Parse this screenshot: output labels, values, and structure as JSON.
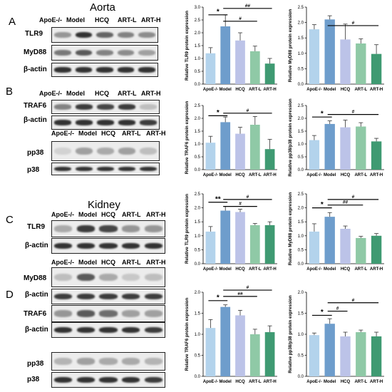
{
  "panels": {
    "A": "A",
    "B": "B",
    "C": "C",
    "D": "D"
  },
  "tissues": {
    "aorta": "Aorta",
    "kidney": "Kidney"
  },
  "groups": [
    "ApoE-/-",
    "Model",
    "HCQ",
    "ART-L",
    "ART-H"
  ],
  "blot_labels": {
    "a_tlr9": "TLR9",
    "a_myd88": "MyD88",
    "a_bactin": "β-actin",
    "b_traf6": "TRAF6",
    "b_bactin": "β-actin",
    "b_pp38": "pp38",
    "b_p38": "p38",
    "c_tlr9": "TLR9",
    "c_bactin1": "β-actin",
    "c_myd88": "MyD88",
    "c_bactin2": "β-actin",
    "d_traf6": "TRAF6",
    "d_bactin": "β-actin",
    "d_pp38": "pp38",
    "d_p38": "p38"
  },
  "colors": {
    "ApoE": "#b3d3ec",
    "Model": "#6e9dcc",
    "HCQ": "#bcc3e8",
    "ARTL": "#8fc9a6",
    "ARTH": "#3f9a72"
  },
  "chart_data": [
    {
      "type": "bar",
      "ylabel": "Relative TLR9 protein expression",
      "ylim": [
        0,
        3
      ],
      "ticks": [
        0.0,
        0.5,
        1.0,
        1.5,
        2.0,
        2.5,
        3.0
      ],
      "categories": [
        "ApoE-/-",
        "Model",
        "HCQ",
        "ART-L",
        "ART-H"
      ],
      "values": [
        1.2,
        2.25,
        1.7,
        1.28,
        0.8
      ],
      "errors": [
        0.22,
        0.45,
        0.3,
        0.2,
        0.2
      ],
      "annotations": [
        {
          "from": 0,
          "to": 1,
          "text": "*",
          "y": 2.7
        },
        {
          "from": 1,
          "to": 3,
          "text": "#",
          "y": 2.45
        },
        {
          "from": 1,
          "to": 4,
          "text": "##",
          "y": 2.95
        }
      ]
    },
    {
      "type": "bar",
      "ylabel": "Relative MyD88 protein expression",
      "ylim": [
        0,
        2.5
      ],
      "ticks": [
        0.0,
        0.5,
        1.0,
        1.5,
        2.0,
        2.5
      ],
      "categories": [
        "ApoE-/-",
        "Model",
        "HCQ",
        "ART-L",
        "ART-H"
      ],
      "values": [
        1.78,
        2.1,
        1.45,
        1.32,
        0.98
      ],
      "errors": [
        0.15,
        0.12,
        0.5,
        0.15,
        0.3
      ],
      "annotations": [
        {
          "from": 1,
          "to": 4,
          "text": "#",
          "y": 1.9
        }
      ]
    },
    {
      "type": "bar",
      "ylabel": "Relative TRAF6 protein expression",
      "ylim": [
        0,
        2.5
      ],
      "ticks": [
        0.0,
        0.5,
        1.0,
        1.5,
        2.0,
        2.5
      ],
      "categories": [
        "ApoE-/-",
        "Model",
        "HCQ",
        "ART-L",
        "ART-H"
      ],
      "values": [
        1.05,
        1.85,
        1.4,
        1.75,
        0.8
      ],
      "errors": [
        0.25,
        0.2,
        0.25,
        0.32,
        0.38
      ],
      "annotations": [
        {
          "from": 0,
          "to": 1,
          "text": "*",
          "y": 2.1
        },
        {
          "from": 1,
          "to": 4,
          "text": "#",
          "y": 2.2
        }
      ]
    },
    {
      "type": "bar",
      "ylabel": "Relative pp38/p38 protein expression",
      "ylim": [
        0,
        2.5
      ],
      "ticks": [
        0.0,
        0.5,
        1.0,
        1.5,
        2.0,
        2.5
      ],
      "categories": [
        "ApoE-/-",
        "Model",
        "HCQ",
        "ART-L",
        "ART-H"
      ],
      "values": [
        1.15,
        1.78,
        1.65,
        1.68,
        1.1
      ],
      "errors": [
        0.18,
        0.12,
        0.28,
        0.15,
        0.12
      ],
      "annotations": [
        {
          "from": 0,
          "to": 1,
          "text": "*",
          "y": 2.05
        },
        {
          "from": 1,
          "to": 4,
          "text": "#",
          "y": 2.15
        }
      ]
    },
    {
      "type": "bar",
      "ylabel": "Relative TLR9 protein expression",
      "ylim": [
        0,
        2.5
      ],
      "ticks": [
        0.0,
        0.5,
        1.0,
        1.5,
        2.0,
        2.5
      ],
      "categories": [
        "ApoE-/-",
        "Model",
        "HCQ",
        "ART-L",
        "ART-H"
      ],
      "values": [
        1.15,
        1.9,
        1.85,
        1.38,
        1.38
      ],
      "errors": [
        0.18,
        0.15,
        0.1,
        0.06,
        0.12
      ],
      "annotations": [
        {
          "from": 0,
          "to": 1,
          "text": "**",
          "y": 2.2
        },
        {
          "from": 1,
          "to": 3,
          "text": "#",
          "y": 2.05
        },
        {
          "from": 1,
          "to": 4,
          "text": "#",
          "y": 2.3
        }
      ]
    },
    {
      "type": "bar",
      "ylabel": "Relative MyD88 protein expression",
      "ylim": [
        0,
        2.5
      ],
      "ticks": [
        0.0,
        0.5,
        1.0,
        1.5,
        2.0,
        2.5
      ],
      "categories": [
        "ApoE-/-",
        "Model",
        "HCQ",
        "ART-L",
        "ART-H"
      ],
      "values": [
        1.15,
        1.68,
        1.25,
        0.92,
        1.0
      ],
      "errors": [
        0.28,
        0.15,
        0.1,
        0.06,
        0.08
      ],
      "annotations": [
        {
          "from": 0,
          "to": 1,
          "text": "*",
          "y": 2.0
        },
        {
          "from": 1,
          "to": 3,
          "text": "##",
          "y": 2.1
        },
        {
          "from": 1,
          "to": 4,
          "text": "#",
          "y": 2.3
        }
      ]
    },
    {
      "type": "bar",
      "ylabel": "Relative TRAF6 protein expression",
      "ylim": [
        0,
        2.0
      ],
      "ticks": [
        0.0,
        0.5,
        1.0,
        1.5,
        2.0
      ],
      "categories": [
        "ApoE-/-",
        "Model",
        "HCQ",
        "ART-L",
        "ART-H"
      ],
      "values": [
        1.15,
        1.65,
        1.45,
        1.0,
        1.05
      ],
      "errors": [
        0.2,
        0.05,
        0.12,
        0.12,
        0.15
      ],
      "annotations": [
        {
          "from": 0,
          "to": 1,
          "text": "*",
          "y": 1.8
        },
        {
          "from": 1,
          "to": 3,
          "text": "##",
          "y": 1.9
        },
        {
          "from": 1,
          "to": 4,
          "text": "#",
          "y": 2.05
        }
      ]
    },
    {
      "type": "bar",
      "ylabel": "Relative pp38/p38 protein expression",
      "ylim": [
        0,
        2.0
      ],
      "ticks": [
        0.0,
        0.5,
        1.0,
        1.5,
        2.0
      ],
      "categories": [
        "ApoE-/-",
        "Model",
        "HCQ",
        "ART-L",
        "ART-H"
      ],
      "values": [
        0.98,
        1.25,
        0.95,
        1.05,
        0.95
      ],
      "errors": [
        0.05,
        0.12,
        0.1,
        0.05,
        0.1
      ],
      "annotations": [
        {
          "from": 0,
          "to": 1,
          "text": "*",
          "y": 1.45
        },
        {
          "from": 1,
          "to": 2,
          "text": "#",
          "y": 1.55
        },
        {
          "from": 1,
          "to": 4,
          "text": "#",
          "y": 1.75
        }
      ]
    }
  ]
}
